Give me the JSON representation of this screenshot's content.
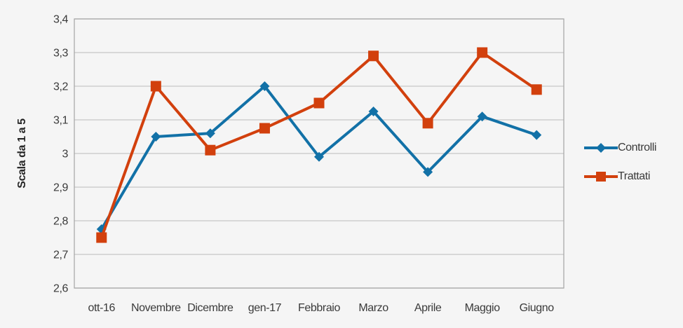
{
  "chart_data": {
    "type": "line",
    "title": "",
    "xlabel": "",
    "ylabel": "Scala da 1 a 5",
    "categories": [
      "ott-16",
      "Novembre",
      "Dicembre",
      "gen-17",
      "Febbraio",
      "Marzo",
      "Aprile",
      "Maggio",
      "Giugno"
    ],
    "series": [
      {
        "name": "Controlli",
        "color": "#1271a7",
        "marker": "diamond",
        "values": [
          2.775,
          3.05,
          3.06,
          3.2,
          2.99,
          3.125,
          2.945,
          3.11,
          3.055
        ]
      },
      {
        "name": "Trattati",
        "color": "#d2400d",
        "marker": "square",
        "values": [
          2.75,
          3.2,
          3.01,
          3.075,
          3.15,
          3.29,
          3.09,
          3.3,
          3.19
        ]
      }
    ],
    "ylim": [
      2.6,
      3.4
    ],
    "ytick_labels": [
      "2,6",
      "2,7",
      "2,8",
      "2,9",
      "3",
      "3,1",
      "3,2",
      "3,3",
      "3,4"
    ],
    "grid": true,
    "legend_position": "right"
  },
  "colors": {
    "background": "#f5f5f5",
    "gridline": "#c6c6c6",
    "plot_border": "#a9a9a9",
    "text": "#3a3a3a"
  }
}
